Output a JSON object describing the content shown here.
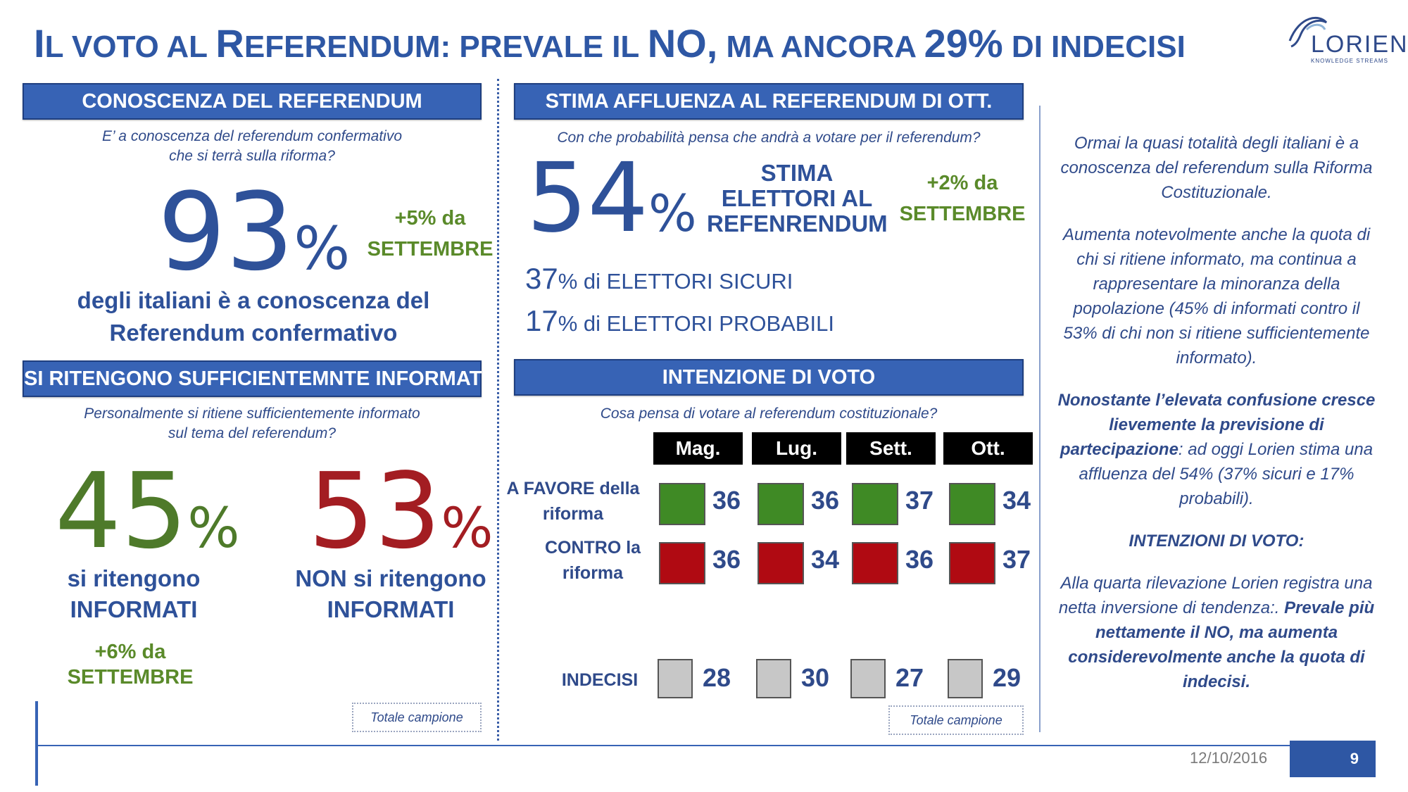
{
  "title": {
    "w1_cap": "I",
    "w1_rest": "L VOTO AL ",
    "w2_cap": "R",
    "w2_rest": "EFERENDUM: PREVALE IL ",
    "w3": "NO,",
    "w4": " MA ANCORA ",
    "w5": "29%",
    "w6": " DI INDECISI"
  },
  "logo": {
    "word": "LORIEN",
    "sub": "KNOWLEDGE STREAMS",
    "icon": "lorien-swirl-icon"
  },
  "conoscenza": {
    "header": "CONOSCENZA DEL REFERENDUM",
    "question_l1": "E’ a conoscenza del referendum confermativo",
    "question_l2": "che si terrà sulla riforma?",
    "pct": "93",
    "pct_sign": "%",
    "delta": "+5%",
    "delta_da": " da",
    "delta_since": "SETTEMBRE",
    "desc_l1": "degli italiani è a conoscenza del",
    "desc_l2": "Referendum confermativo"
  },
  "informati": {
    "header": "SI RITENGONO SUFFICIENTEMNTE INFORMATI",
    "question_l1": "Personalmente si ritiene sufficientemente informato",
    "question_l2": "sul tema del referendum?",
    "yes_pct": "45",
    "yes_sign": "%",
    "yes_l1": "si ritengono",
    "yes_l2": "INFORMATI",
    "no_pct": "53",
    "no_sign": "%",
    "no_l1": "NON si ritengono",
    "no_l2": "INFORMATI",
    "delta": "+6%",
    "delta_da": " da",
    "delta_since": "SETTEMBRE",
    "totale": "Totale campione"
  },
  "affluenza": {
    "header": "STIMA AFFLUENZA AL REFERENDUM DI OTT.",
    "question": "Con che probabilità pensa che andrà a votare per il referendum?",
    "pct": "54",
    "pct_sign": "%",
    "label_l1": "STIMA",
    "label_l2": "ELETTORI AL",
    "label_l3": "REFENRENDUM",
    "delta": "+2%",
    "delta_da": " da",
    "delta_since": "SETTEMBRE",
    "sicuri_pct": "37",
    "sicuri_rest": "% di ELETTORI SICURI",
    "probabili_pct": "17",
    "probabili_rest": "% di ELETTORI PROBABILI"
  },
  "intenzione": {
    "header": "INTENZIONE DI VOTO",
    "question": "Cosa pensa di votare al referendum costituzionale?",
    "columns": [
      "Mag.",
      "Lug.",
      "Sett.",
      "Ott."
    ],
    "favore_l1": "A FAVORE della",
    "favore_l2": "riforma",
    "favore": [
      "36",
      "36",
      "37",
      "34"
    ],
    "contro_l1": "CONTRO la",
    "contro_l2": "riforma",
    "contro": [
      "36",
      "34",
      "36",
      "37"
    ],
    "indecisi_label": "INDECISI",
    "indecisi": [
      "28",
      "30",
      "27",
      "29"
    ],
    "colors": {
      "favore": "#3f8a25",
      "contro": "#b00a12",
      "indecisi": "#c7c7c7"
    },
    "totale": "Totale campione"
  },
  "commento": {
    "p1": "Ormai la quasi totalità degli italiani è a conoscenza del referendum sulla Riforma Costituzionale.",
    "p2": "Aumenta notevolmente anche la quota di chi si ritiene informato, ma continua a rappresentare la minoranza della popolazione (45% di informati contro il 53% di chi non si ritiene sufficientemente informato).",
    "p3_bold": "Nonostante l’elevata confusione cresce lievemente la previsione di partecipazione",
    "p3_rest": ":  ad oggi Lorien stima una affluenza del 54% (37% sicuri e 17% probabili).",
    "p4": "INTENZIONI DI VOTO:",
    "p5_plain": "Alla quarta rilevazione Lorien registra una netta inversione di tendenza:.",
    "p5_bold": "Prevale più nettamente il NO, ma aumenta considerevolmente anche la quota di indecisi."
  },
  "footer": {
    "date": "12/10/2016",
    "page": "9"
  }
}
